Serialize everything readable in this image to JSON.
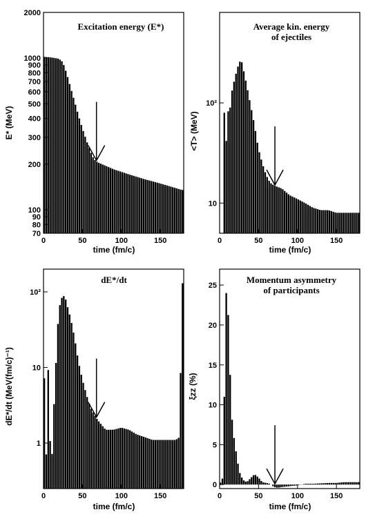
{
  "chart_data": [
    {
      "type": "bar",
      "title": "Excitation energy (E*)",
      "xlabel": "time (fm/c)",
      "ylabel": "E* (MeV)",
      "xlim": [
        0,
        180
      ],
      "ylim": [
        70,
        2000
      ],
      "y_scale": "log",
      "x_ticks": [
        "0",
        "50",
        "100",
        "150"
      ],
      "y_ticks": [
        "70",
        "80",
        "90",
        "100",
        "200",
        "300",
        "400",
        "500",
        "600",
        "700",
        "800",
        "900",
        "1000",
        "2000"
      ],
      "arrow_x": 68,
      "x": [
        0,
        10,
        20,
        25,
        30,
        35,
        40,
        45,
        50,
        55,
        60,
        65,
        70,
        80,
        90,
        100,
        110,
        120,
        130,
        140,
        150,
        160,
        170,
        178
      ],
      "values": [
        1020,
        1010,
        990,
        940,
        790,
        640,
        520,
        420,
        345,
        290,
        245,
        215,
        205,
        195,
        185,
        178,
        171,
        165,
        159,
        154,
        149,
        144,
        139,
        135
      ]
    },
    {
      "type": "bar",
      "title": "Average kin. energy\nof ejectiles",
      "xlabel": "time (fm/c)",
      "ylabel": "<T> (MeV)",
      "xlim": [
        0,
        180
      ],
      "ylim": [
        5,
        800
      ],
      "y_scale": "log",
      "x_ticks": [
        "0",
        "50",
        "100",
        "150"
      ],
      "y_ticks": [
        "10",
        "10²"
      ],
      "arrow_x": 71,
      "x": [
        0,
        5,
        7,
        9,
        10,
        12,
        15,
        20,
        25,
        28,
        30,
        35,
        40,
        45,
        50,
        55,
        60,
        65,
        70,
        80,
        90,
        100,
        110,
        120,
        130,
        140,
        150,
        160,
        170,
        178
      ],
      "values": [
        5,
        5,
        420,
        30,
        140,
        60,
        120,
        180,
        250,
        270,
        230,
        150,
        95,
        60,
        35,
        25,
        19,
        16,
        15,
        14,
        12,
        11,
        10,
        9,
        8.5,
        8.5,
        8,
        8,
        8,
        8
      ]
    },
    {
      "type": "bar",
      "title": "dE*/dt",
      "xlabel": "time (fm/c)",
      "ylabel": "dE*/dt (MeV(fm/c)⁻¹)",
      "xlim": [
        0,
        180
      ],
      "ylim": [
        0.25,
        200
      ],
      "y_scale": "log",
      "x_ticks": [
        "0",
        "50",
        "100",
        "150"
      ],
      "y_ticks": [
        "1",
        "10",
        "10²"
      ],
      "arrow_x": 68,
      "x": [
        0,
        2,
        4,
        6,
        8,
        10,
        12,
        14,
        16,
        18,
        20,
        22,
        25,
        28,
        30,
        35,
        40,
        45,
        50,
        55,
        60,
        65,
        70,
        80,
        90,
        100,
        110,
        120,
        130,
        140,
        150,
        160,
        170,
        175,
        178
      ],
      "values": [
        6,
        8,
        0.5,
        12,
        1.5,
        0.6,
        0.8,
        4,
        10,
        30,
        55,
        75,
        90,
        85,
        70,
        45,
        25,
        12,
        7,
        4.5,
        3,
        2.4,
        2,
        1.5,
        1.5,
        1.6,
        1.5,
        1.3,
        1.2,
        1.1,
        1.1,
        1.1,
        1.1,
        1.2,
        130
      ]
    },
    {
      "type": "bar",
      "title": "Momentum asymmetry\nof participants",
      "xlabel": "time (fm/c)",
      "ylabel": "ξzz (%)",
      "xlim": [
        0,
        180
      ],
      "ylim": [
        -0.5,
        27
      ],
      "y_scale": "linear",
      "x_ticks": [
        "0",
        "50",
        "100",
        "150"
      ],
      "y_ticks": [
        "0",
        "5",
        "10",
        "15",
        "20",
        "25"
      ],
      "arrow_x": 71,
      "x": [
        0,
        5,
        7,
        9,
        11,
        13,
        15,
        17,
        20,
        23,
        26,
        30,
        35,
        40,
        45,
        50,
        55,
        60,
        65,
        70,
        75,
        80,
        90,
        100,
        110,
        120,
        130,
        140,
        150,
        160,
        170,
        178
      ],
      "values": [
        0,
        1,
        17,
        25,
        22,
        16,
        10,
        7,
        5,
        3,
        1.5,
        0.6,
        0.3,
        0.8,
        1.3,
        0.9,
        0.3,
        0.2,
        0.1,
        -0.3,
        -0.4,
        -0.3,
        -0.2,
        -0.1,
        0.1,
        0.1,
        0.15,
        0.2,
        0.2,
        0.3,
        0.3,
        0.3
      ]
    }
  ]
}
